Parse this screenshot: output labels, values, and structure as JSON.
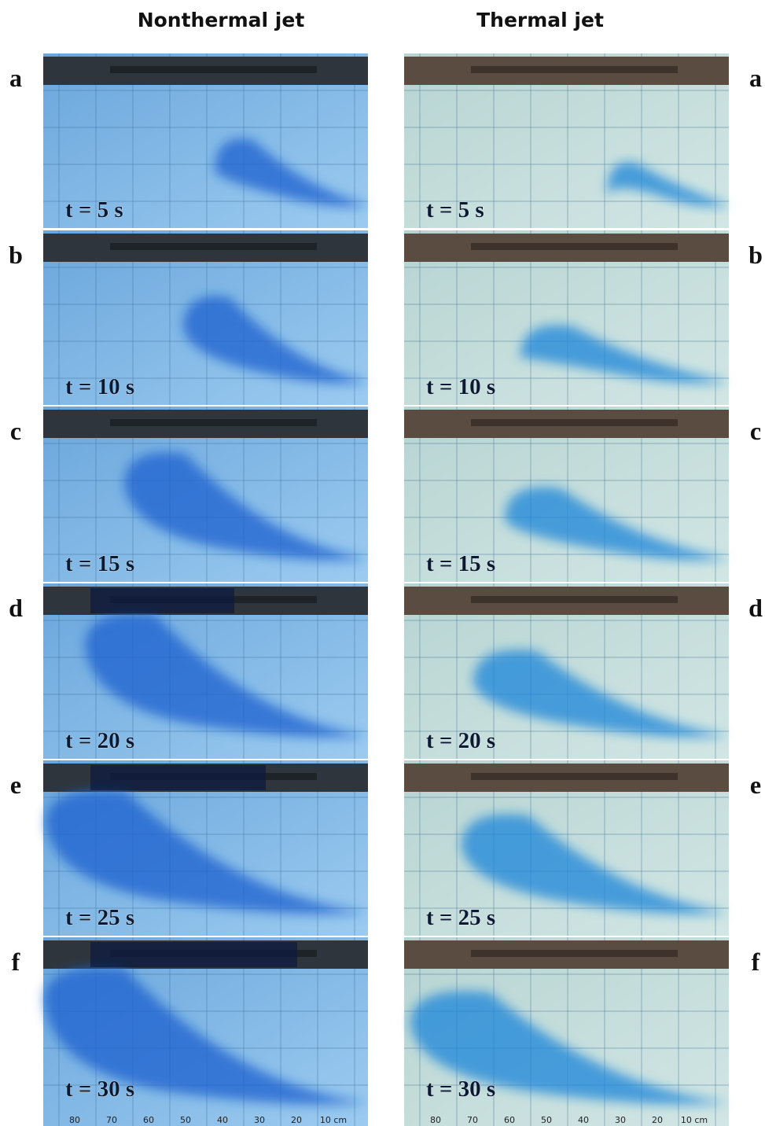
{
  "header": {
    "columns": [
      "Nonthermal jet",
      "Thermal jet"
    ]
  },
  "panels": [
    {
      "letter": "a",
      "time": "t = 5 s"
    },
    {
      "letter": "b",
      "time": "t = 10 s"
    },
    {
      "letter": "c",
      "time": "t = 15 s"
    },
    {
      "letter": "d",
      "time": "t = 20 s"
    },
    {
      "letter": "e",
      "time": "t = 25 s"
    },
    {
      "letter": "f",
      "time": "t = 30 s"
    }
  ],
  "scale": {
    "labels": [
      "80",
      "70",
      "60",
      "50",
      "40",
      "30",
      "20",
      "10 cm"
    ]
  }
}
